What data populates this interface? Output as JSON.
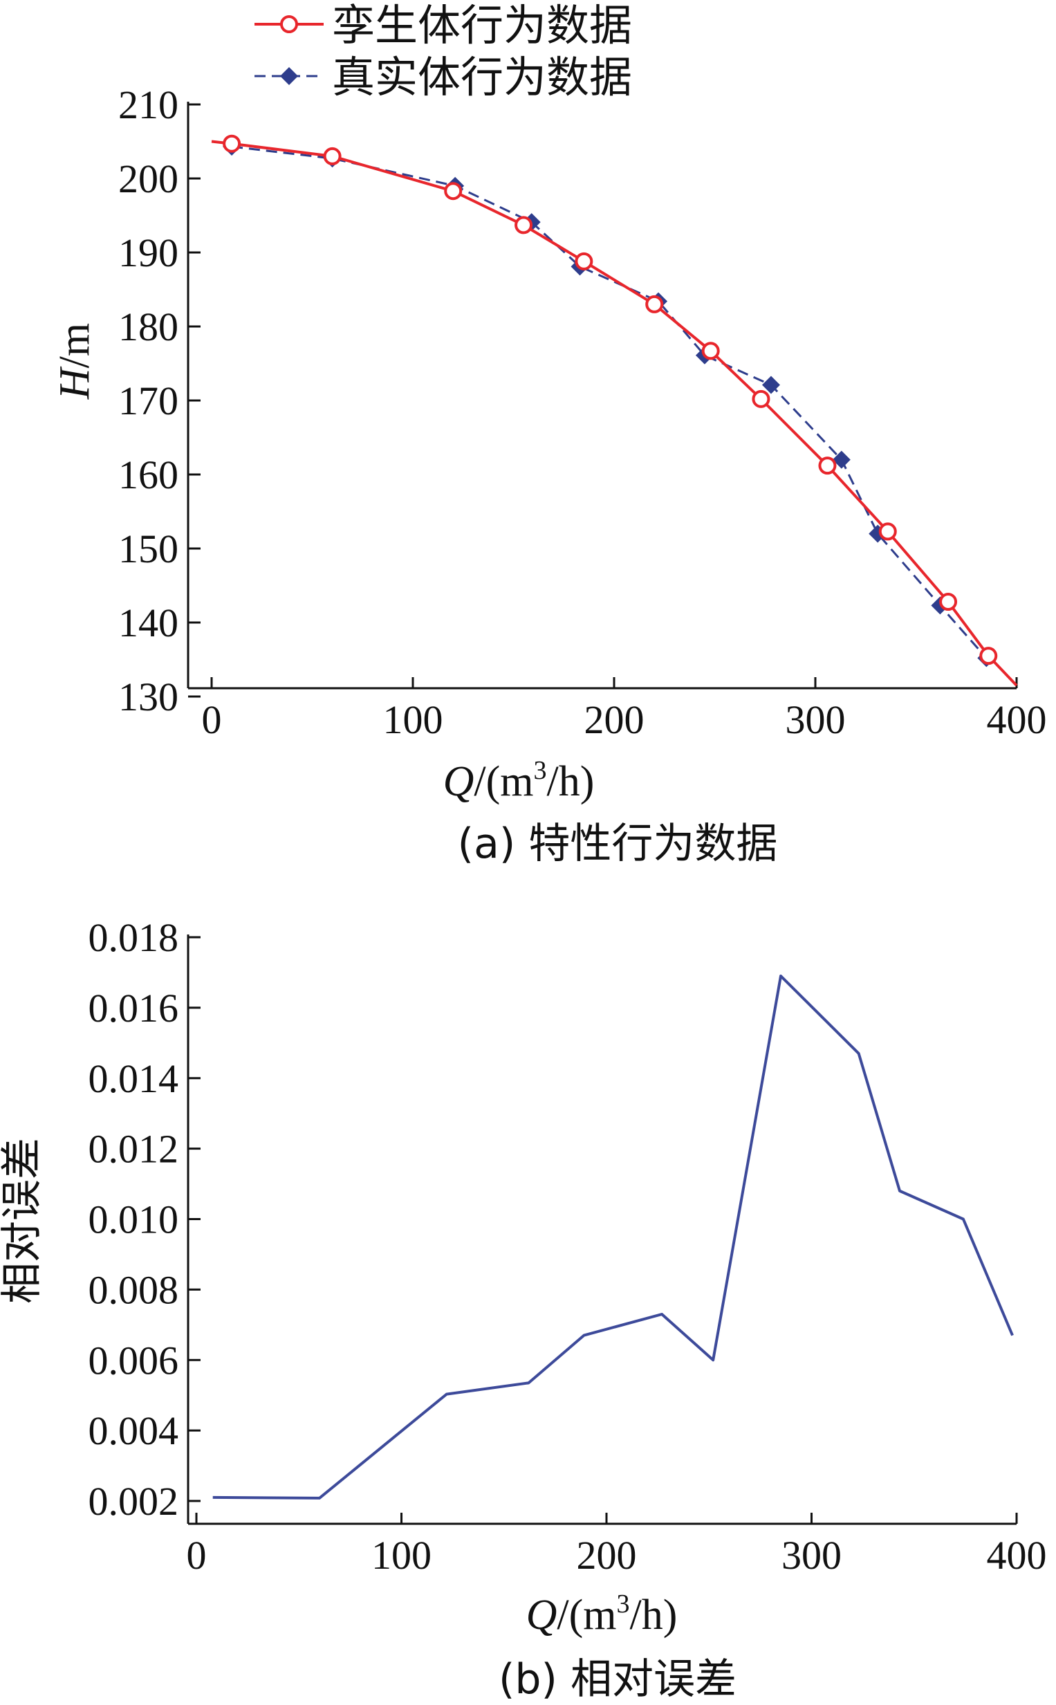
{
  "chart_data": [
    {
      "type": "line",
      "caption": "(a) 特性行为数据",
      "xlabel": "Q/(m³/h)",
      "ylabel": "H/m",
      "xlim": [
        0,
        400
      ],
      "ylim": [
        130,
        210
      ],
      "xticks": [
        0,
        100,
        200,
        300,
        400
      ],
      "yticks": [
        130,
        140,
        150,
        160,
        170,
        180,
        190,
        200,
        210
      ],
      "grid": false,
      "legend": "top",
      "series": [
        {
          "name": "孪生体行为数据",
          "color": "#e8262c",
          "marker": "open-circle",
          "line": "solid",
          "curve_x": [
            0,
            10,
            60,
            120,
            155,
            185,
            220,
            248,
            273,
            306,
            336,
            366,
            386,
            400
          ],
          "curve_y": [
            205,
            204.7,
            203,
            198.3,
            193.7,
            188.8,
            183,
            176.7,
            170.2,
            161.2,
            152.3,
            142.8,
            135.5,
            131.5
          ],
          "x": [
            10,
            60,
            120,
            155,
            185,
            220,
            248,
            273,
            306,
            336,
            366,
            386
          ],
          "y": [
            204.7,
            203,
            198.3,
            193.7,
            188.8,
            183,
            176.7,
            170.2,
            161.2,
            152.3,
            142.8,
            135.5
          ]
        },
        {
          "name": "真实体行为数据",
          "color": "#2e3d8c",
          "marker": "filled-diamond",
          "line": "dashed",
          "x": [
            10,
            60,
            121,
            159,
            183,
            222,
            245,
            278,
            313,
            331,
            362,
            385
          ],
          "y": [
            204.3,
            202.7,
            199,
            194.1,
            188.1,
            183.4,
            176.1,
            172.1,
            162,
            152,
            142.3,
            135.2
          ]
        }
      ]
    },
    {
      "type": "line",
      "caption": "(b) 相对误差",
      "xlabel": "Q/(m³/h)",
      "ylabel": "相对误差",
      "xlim": [
        0,
        400
      ],
      "ylim": [
        0.0015,
        0.018
      ],
      "xticks": [
        0,
        100,
        200,
        300,
        400
      ],
      "yticks": [
        "0.002",
        "0.004",
        "0.006",
        "0.008",
        "0.010",
        "0.012",
        "0.014",
        "0.016",
        "0.018"
      ],
      "grid": false,
      "series": [
        {
          "color": "#3d4a9a",
          "x": [
            8,
            60,
            122,
            162,
            189,
            227,
            252,
            285,
            323,
            343,
            374,
            398
          ],
          "y": [
            0.0021,
            0.00208,
            0.00503,
            0.00535,
            0.0067,
            0.0073,
            0.006,
            0.0169,
            0.0147,
            0.0108,
            0.01,
            0.0067
          ]
        }
      ]
    }
  ]
}
